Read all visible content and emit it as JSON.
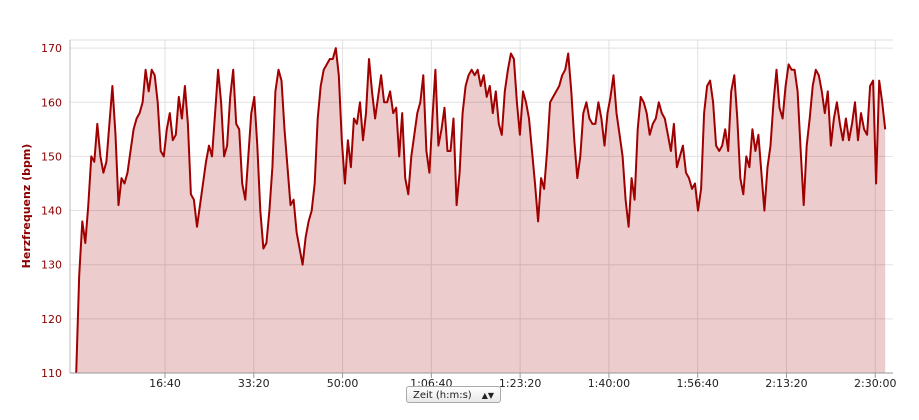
{
  "chart_data": {
    "type": "area",
    "ylabel": "Herzfrequenz (bpm)",
    "xlabel": "Zeit (h:m:s)",
    "color": "#a00000",
    "grid": true,
    "xlim": [
      -70,
      9200
    ],
    "ylim": [
      110,
      171.5
    ],
    "yticks": [
      110,
      120,
      130,
      140,
      150,
      160,
      170
    ],
    "xticks": [
      {
        "value": 1000,
        "label": "16:40"
      },
      {
        "value": 2000,
        "label": "33:20"
      },
      {
        "value": 3000,
        "label": "50:00"
      },
      {
        "value": 4000,
        "label": "1:06:40"
      },
      {
        "value": 5000,
        "label": "1:23:20"
      },
      {
        "value": 6000,
        "label": "1:40:00"
      },
      {
        "value": 7000,
        "label": "1:56:40"
      },
      {
        "value": 8000,
        "label": "2:13:20"
      },
      {
        "value": 9000,
        "label": "2:30:00"
      }
    ],
    "x": [
      0,
      34,
      68,
      102,
      136,
      170,
      204,
      238,
      272,
      306,
      340,
      374,
      408,
      442,
      476,
      510,
      544,
      578,
      612,
      646,
      680,
      714,
      748,
      782,
      816,
      850,
      884,
      918,
      952,
      986,
      1020,
      1054,
      1088,
      1122,
      1156,
      1190,
      1224,
      1258,
      1292,
      1326,
      1360,
      1394,
      1428,
      1462,
      1496,
      1530,
      1564,
      1598,
      1632,
      1666,
      1700,
      1734,
      1768,
      1802,
      1836,
      1870,
      1904,
      1938,
      1972,
      2006,
      2040,
      2074,
      2108,
      2142,
      2176,
      2210,
      2244,
      2278,
      2312,
      2346,
      2380,
      2414,
      2448,
      2482,
      2516,
      2550,
      2584,
      2618,
      2652,
      2686,
      2720,
      2754,
      2788,
      2822,
      2856,
      2890,
      2924,
      2958,
      2992,
      3026,
      3060,
      3094,
      3128,
      3162,
      3196,
      3230,
      3264,
      3298,
      3332,
      3366,
      3400,
      3434,
      3468,
      3502,
      3536,
      3570,
      3604,
      3638,
      3672,
      3706,
      3740,
      3774,
      3808,
      3842,
      3876,
      3910,
      3944,
      3978,
      4012,
      4046,
      4080,
      4114,
      4148,
      4182,
      4216,
      4250,
      4284,
      4318,
      4352,
      4386,
      4420,
      4454,
      4488,
      4522,
      4556,
      4590,
      4624,
      4658,
      4692,
      4726,
      4760,
      4794,
      4828,
      4862,
      4896,
      4930,
      4964,
      4998,
      5032,
      5066,
      5100,
      5134,
      5168,
      5202,
      5236,
      5270,
      5304,
      5338,
      5372,
      5406,
      5440,
      5474,
      5508,
      5542,
      5576,
      5610,
      5644,
      5678,
      5712,
      5746,
      5780,
      5814,
      5848,
      5882,
      5916,
      5950,
      5984,
      6018,
      6052,
      6086,
      6120,
      6154,
      6188,
      6222,
      6256,
      6290,
      6324,
      6358,
      6392,
      6426,
      6460,
      6494,
      6528,
      6562,
      6596,
      6630,
      6664,
      6698,
      6732,
      6766,
      6800,
      6834,
      6868,
      6902,
      6936,
      6970,
      7004,
      7038,
      7072,
      7106,
      7140,
      7174,
      7208,
      7242,
      7276,
      7310,
      7344,
      7378,
      7412,
      7446,
      7480,
      7514,
      7548,
      7582,
      7616,
      7650,
      7684,
      7718,
      7752,
      7786,
      7820,
      7854,
      7888,
      7922,
      7956,
      7990,
      8024,
      8058,
      8092,
      8126,
      8160,
      8194,
      8228,
      8262,
      8296,
      8330,
      8364,
      8398,
      8432,
      8466,
      8500,
      8534,
      8568,
      8602,
      8636,
      8670,
      8704,
      8738,
      8772,
      8806,
      8840,
      8874,
      8908,
      8942,
      8976,
      9010,
      9044,
      9078,
      9112
    ],
    "values": [
      110,
      128,
      138,
      134,
      141,
      150,
      149,
      156,
      150,
      147,
      149,
      156,
      163,
      154,
      141,
      146,
      145,
      147,
      151,
      155,
      157,
      158,
      160,
      166,
      162,
      166,
      165,
      160,
      151,
      150,
      155,
      158,
      153,
      154,
      161,
      157,
      163,
      156,
      143,
      142,
      137,
      141,
      145,
      149,
      152,
      150,
      158,
      166,
      160,
      150,
      152,
      161,
      166,
      156,
      155,
      145,
      142,
      150,
      158,
      161,
      152,
      140,
      133,
      134,
      140,
      148,
      162,
      166,
      164,
      155,
      148,
      141,
      142,
      136,
      133,
      130,
      135,
      138,
      140,
      145,
      157,
      163,
      166,
      167,
      168,
      168,
      170,
      165,
      153,
      145,
      153,
      148,
      157,
      156,
      160,
      153,
      158,
      168,
      162,
      157,
      161,
      165,
      160,
      160,
      162,
      158,
      159,
      150,
      158,
      146,
      143,
      150,
      154,
      158,
      160,
      165,
      151,
      147,
      157,
      166,
      152,
      155,
      159,
      151,
      151,
      157,
      141,
      147,
      158,
      163,
      165,
      166,
      165,
      166,
      163,
      165,
      161,
      163,
      158,
      162,
      156,
      154,
      162,
      166,
      169,
      168,
      160,
      154,
      162,
      160,
      157,
      151,
      145,
      138,
      146,
      144,
      151,
      160,
      161,
      162,
      163,
      165,
      166,
      169,
      162,
      153,
      146,
      150,
      158,
      160,
      157,
      156,
      156,
      160,
      157,
      152,
      158,
      161,
      165,
      158,
      154,
      150,
      142,
      137,
      146,
      142,
      155,
      161,
      160,
      158,
      154,
      156,
      157,
      160,
      158,
      157,
      154,
      151,
      156,
      148,
      150,
      152,
      147,
      146,
      144,
      145,
      140,
      144,
      158,
      163,
      164,
      160,
      152,
      151,
      152,
      155,
      151,
      162,
      165,
      157,
      146,
      143,
      150,
      148,
      155,
      151,
      154,
      147,
      140,
      148,
      152,
      160,
      166,
      159,
      157,
      163,
      167,
      166,
      166,
      162,
      151,
      141,
      152,
      157,
      163,
      166,
      165,
      162,
      158,
      162,
      152,
      157,
      160,
      156,
      153,
      157,
      153,
      156,
      160,
      153,
      158,
      155,
      154,
      163,
      164,
      145,
      164,
      160,
      155
    ]
  }
}
